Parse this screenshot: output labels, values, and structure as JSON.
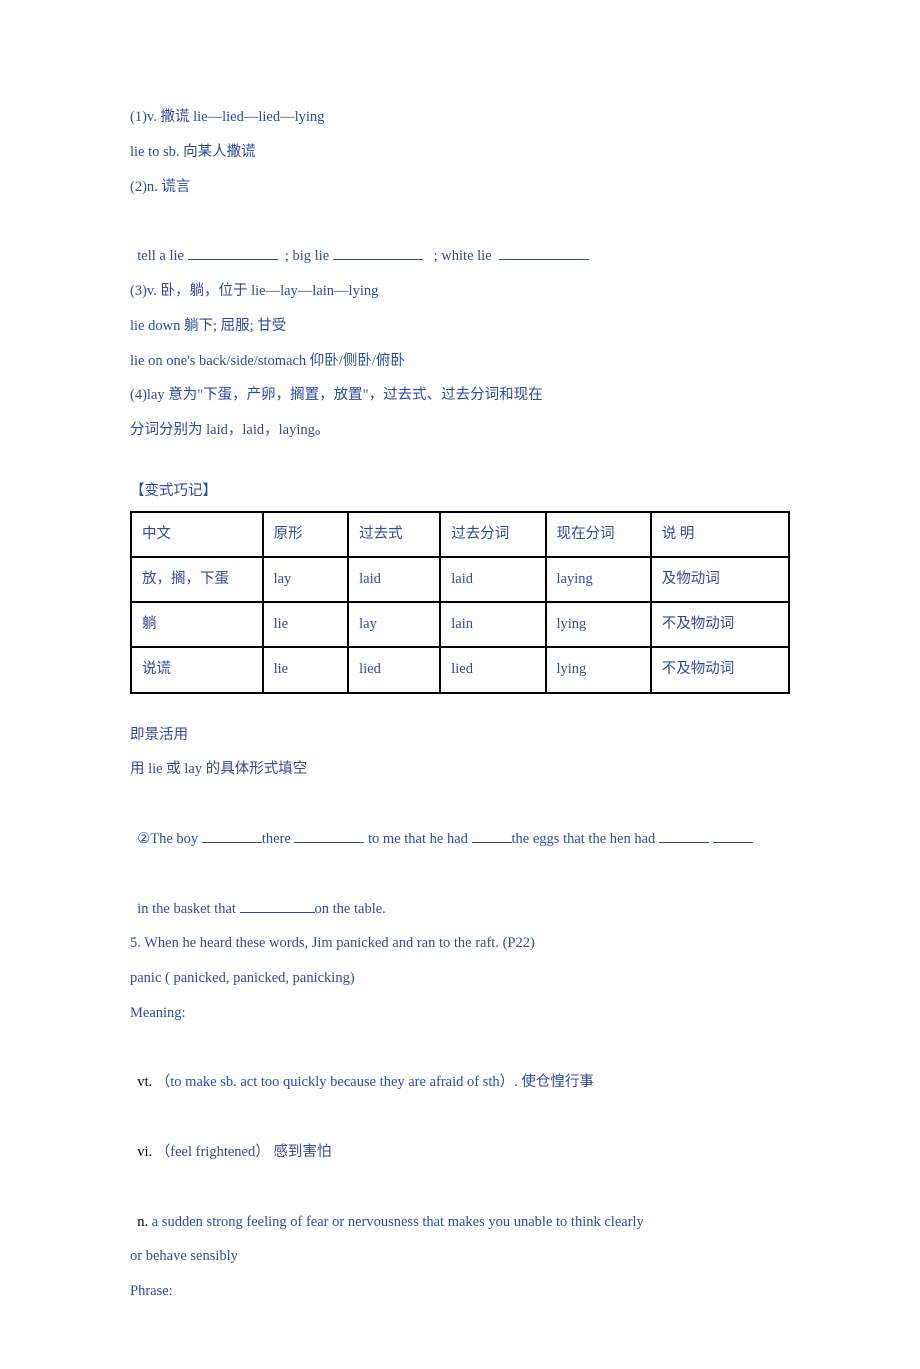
{
  "lines": {
    "l1": "(1)v. 撒谎 lie—lied—lied—lying",
    "l2": "lie to sb. 向某人撒谎",
    "l3": "(2)n. 谎言",
    "l4a": "tell a lie ",
    "l4b": "  ; big lie ",
    "l4c": "   ; white lie  ",
    "l5": "(3)v. 卧，躺，位于 lie—lay—lain—lying",
    "l6": "lie down 躺下; 屈服; 甘受",
    "l7": "lie on one's back/side/stomach 仰卧/侧卧/俯卧",
    "l8": "(4)lay 意为\"下蛋，产卵，搁置，放置\"，过去式、过去分词和现在",
    "l9": "分词分别为 laid，laid，laying。",
    "head1": "【变式巧记】",
    "jjhy": "即景活用",
    "fill_label": "用 lie 或 lay 的具体形式填空",
    "s2a": "②The boy ",
    "s2b": "there ",
    "s2c": " to me that he had ",
    "s2d": "the eggs that the hen had ",
    "s3a": "in the basket that ",
    "s3b": "on the table.",
    "l_jim": "5. When he heard these words, Jim panicked and ran to the raft. (P22)",
    "l_panic": "panic ( panicked, panicked, panicking)",
    "meaning": "Meaning:",
    "vt_a": "vt. ",
    "vt_b": "（to make sb. act too quickly because they are afraid of sth）. 使仓惶行事",
    "vi_a": "vi. ",
    "vi_b": "（feel frightened） 感到害怕",
    "n_a": "n. ",
    "n_b": "a sudden strong feeling of fear or nervousness that makes you unable to think clearly",
    "n_c": "or behave sensibly",
    "phrase": "Phrase:"
  },
  "table": {
    "columns": [
      "中文",
      "原形",
      "过去式",
      "过去分词",
      "现在分词",
      "说  明"
    ],
    "rows": [
      [
        "放，搁，下蛋",
        "lay",
        "laid",
        "laid",
        "laying",
        "及物动词"
      ],
      [
        "躺",
        "lie",
        "lay",
        "lain",
        "lying",
        "不及物动词"
      ],
      [
        "说谎",
        "lie",
        "lied",
        "lied",
        "lying",
        "不及物动词"
      ]
    ],
    "col_widths": [
      "20%",
      "13%",
      "14%",
      "16%",
      "16%",
      "21%"
    ]
  },
  "colors": {
    "text": "#2e4a9e",
    "border": "#000000",
    "black_text": "#000000",
    "background": "#ffffff"
  }
}
